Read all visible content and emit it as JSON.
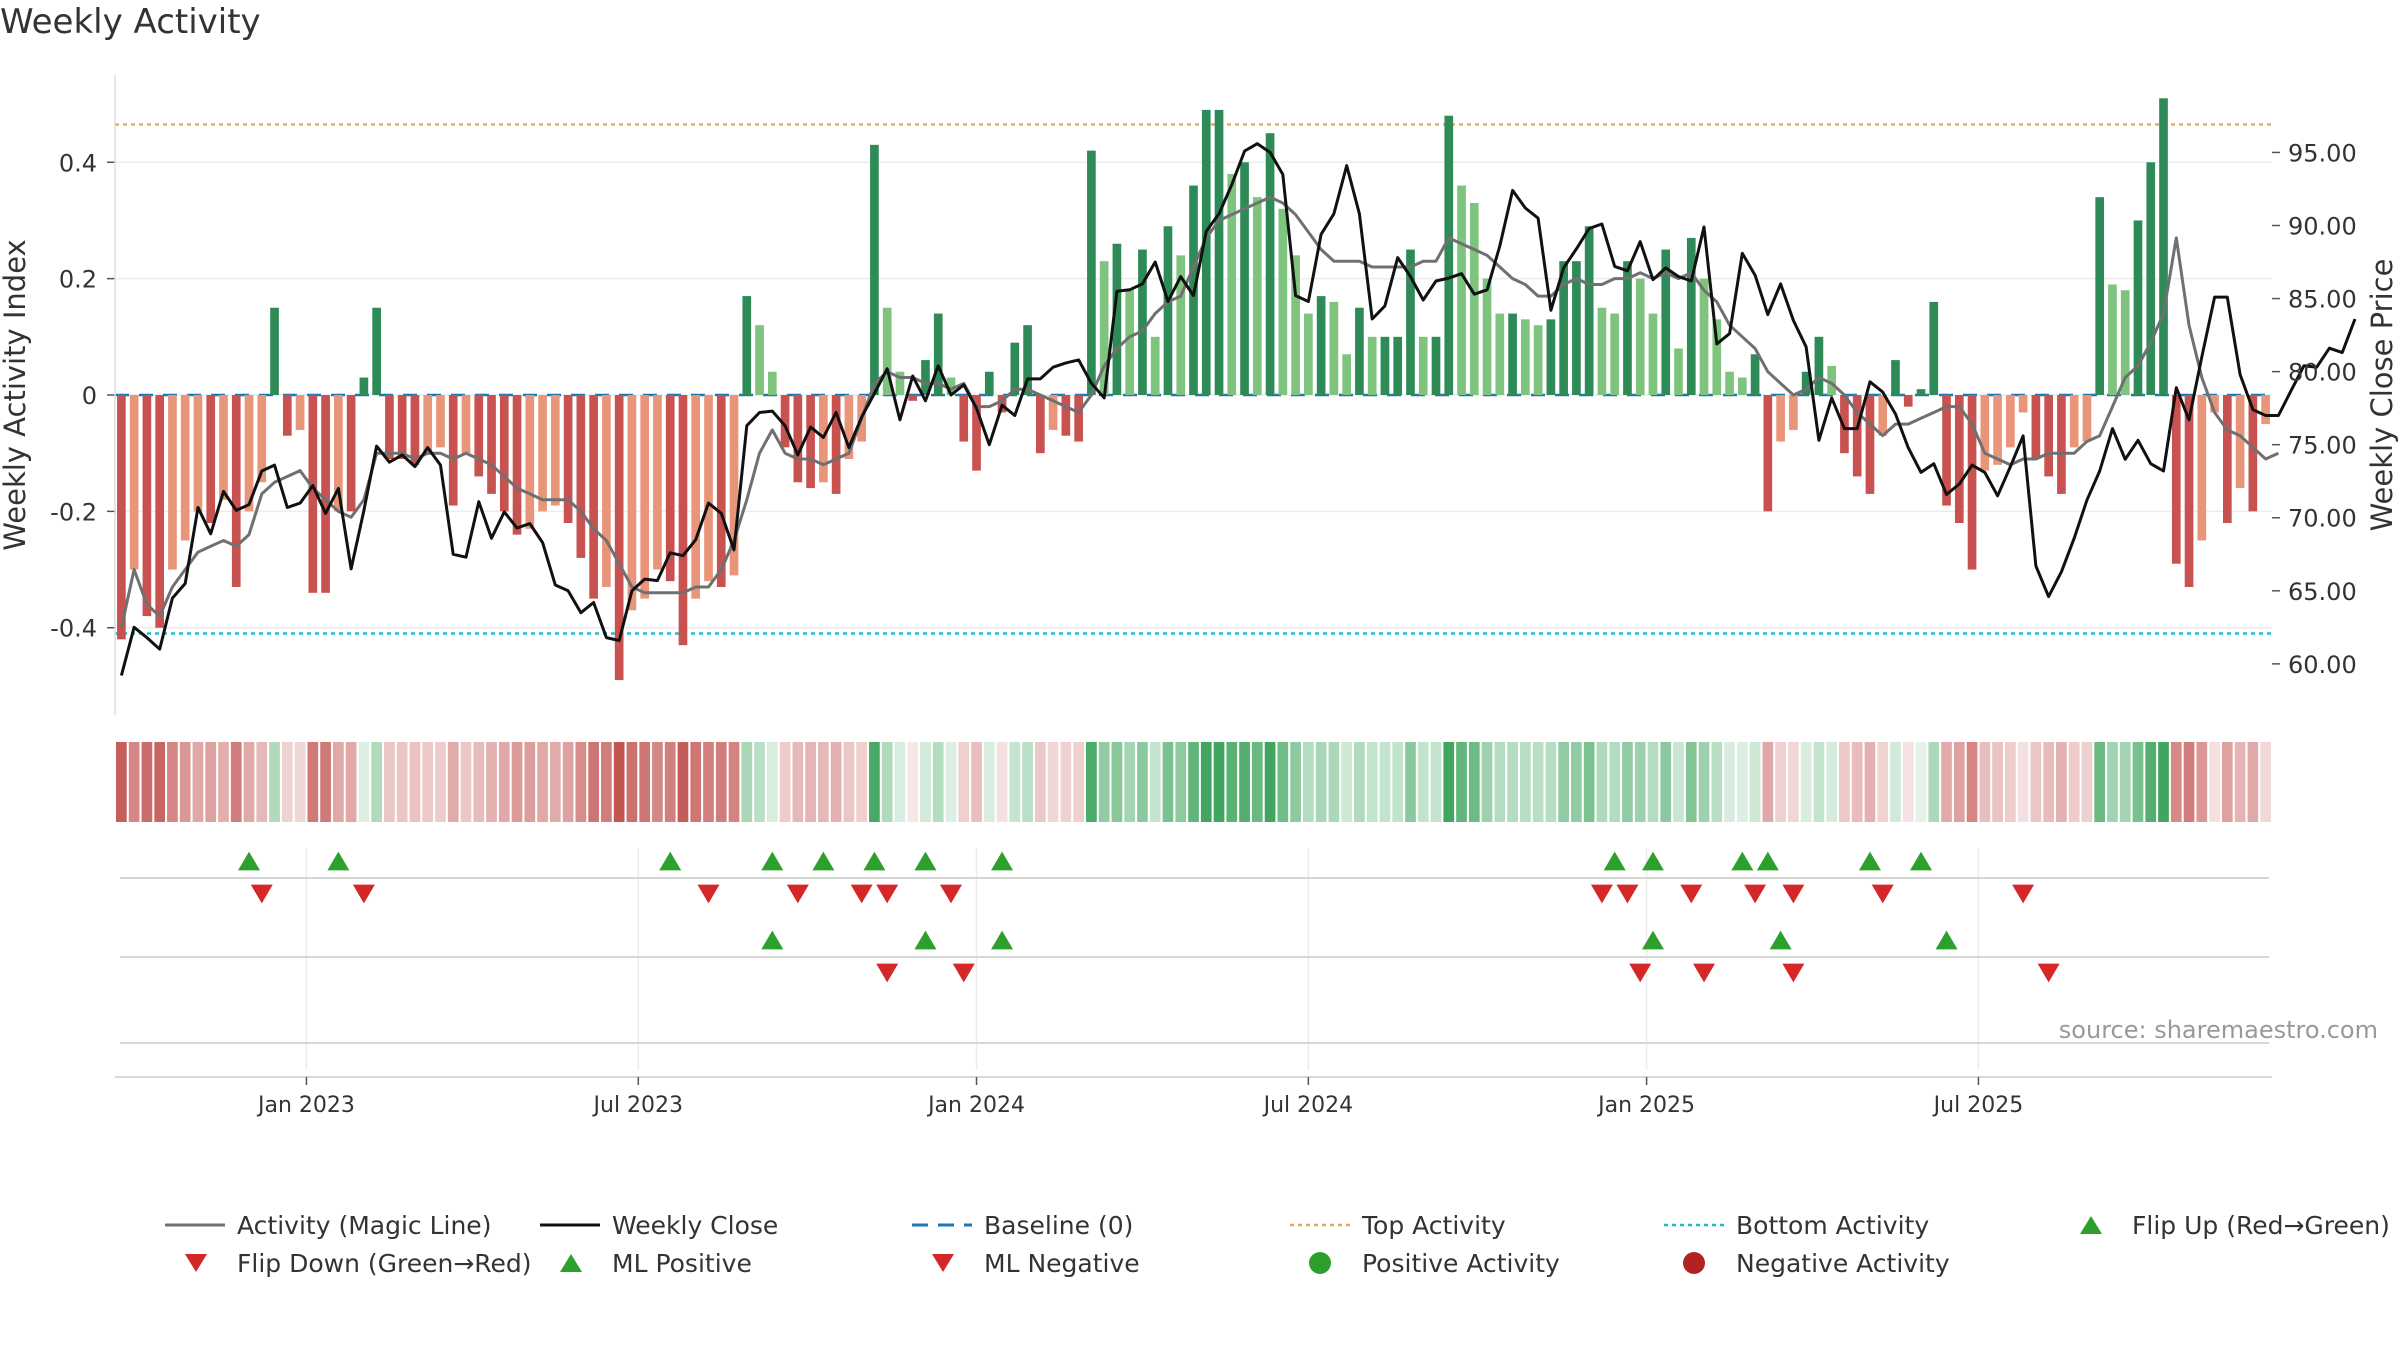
{
  "chart_data": {
    "type": "bar",
    "title": "Weekly Activity",
    "ylabel_left": "Weekly Activity Index",
    "ylabel_right": "Weekly Close Price",
    "ylim_left": [
      -0.55,
      0.55
    ],
    "ylim_right": [
      56.5,
      100.3
    ],
    "left_ticks": [
      {
        "v": 0.4,
        "label": "0.4"
      },
      {
        "v": 0.2,
        "label": "0.2"
      },
      {
        "v": 0,
        "label": "0"
      },
      {
        "v": -0.2,
        "label": "-0.2"
      },
      {
        "v": -0.4,
        "label": "-0.4"
      }
    ],
    "right_ticks": [
      {
        "v": 95,
        "label": "95.00"
      },
      {
        "v": 90,
        "label": "90.00"
      },
      {
        "v": 85,
        "label": "85.00"
      },
      {
        "v": 80,
        "label": "80.00"
      },
      {
        "v": 75,
        "label": "75.00"
      },
      {
        "v": 70,
        "label": "70.00"
      },
      {
        "v": 65,
        "label": "65.00"
      },
      {
        "v": 60,
        "label": "60.00"
      }
    ],
    "x_ticks": [
      {
        "i": 14.5,
        "label": "Jan 2023"
      },
      {
        "i": 40.5,
        "label": "Jul 2023"
      },
      {
        "i": 67,
        "label": "Jan 2024"
      },
      {
        "i": 93,
        "label": "Jul 2024"
      },
      {
        "i": 119.5,
        "label": "Jan 2025"
      },
      {
        "i": 145.5,
        "label": "Jul 2025"
      }
    ],
    "top_activity": 0.465,
    "bottom_activity": -0.41,
    "source": "source: sharemaestro.com",
    "activity": [
      -0.42,
      -0.3,
      -0.38,
      -0.4,
      -0.3,
      -0.25,
      -0.2,
      -0.22,
      -0.18,
      -0.33,
      -0.2,
      -0.15,
      0.15,
      -0.07,
      -0.06,
      -0.34,
      -0.34,
      -0.2,
      -0.2,
      0.03,
      0.15,
      -0.11,
      -0.11,
      -0.12,
      -0.1,
      -0.09,
      -0.19,
      -0.1,
      -0.14,
      -0.17,
      -0.2,
      -0.24,
      -0.23,
      -0.2,
      -0.19,
      -0.22,
      -0.28,
      -0.35,
      -0.33,
      -0.49,
      -0.37,
      -0.35,
      -0.3,
      -0.32,
      -0.43,
      -0.35,
      -0.32,
      -0.33,
      -0.31,
      0.17,
      0.12,
      0.04,
      -0.09,
      -0.15,
      -0.16,
      -0.15,
      -0.17,
      -0.11,
      -0.08,
      0.43,
      0.15,
      0.04,
      -0.01,
      0.06,
      0.14,
      0.03,
      -0.08,
      -0.13,
      0.04,
      -0.03,
      0.09,
      0.12,
      -0.1,
      -0.06,
      -0.07,
      -0.08,
      0.42,
      0.23,
      0.26,
      0.18,
      0.25,
      0.1,
      0.29,
      0.24,
      0.36,
      0.49,
      0.49,
      0.38,
      0.4,
      0.34,
      0.45,
      0.32,
      0.24,
      0.14,
      0.17,
      0.16,
      0.07,
      0.15,
      0.1,
      0.1,
      0.1,
      0.25,
      0.1,
      0.1,
      0.48,
      0.36,
      0.33,
      0.2,
      0.14,
      0.14,
      0.13,
      0.12,
      0.13,
      0.23,
      0.23,
      0.29,
      0.15,
      0.14,
      0.23,
      0.2,
      0.14,
      0.25,
      0.08,
      0.27,
      0.2,
      0.13,
      0.04,
      0.03,
      0.07,
      -0.2,
      -0.08,
      -0.06,
      0.04,
      0.1,
      0.05,
      -0.1,
      -0.14,
      -0.17,
      -0.07,
      0.06,
      -0.02,
      0.01,
      0.16,
      -0.19,
      -0.22,
      -0.3,
      -0.13,
      -0.12,
      -0.09,
      -0.03,
      -0.11,
      -0.14,
      -0.17,
      -0.09,
      -0.08,
      0.34,
      0.19,
      0.18,
      0.3,
      0.4,
      0.51,
      -0.29,
      -0.33,
      -0.25,
      -0.03,
      -0.22,
      -0.16,
      -0.2,
      -0.05
    ],
    "weekly_close": [
      59.2,
      62.5,
      61.8,
      61,
      64.5,
      65.5,
      70.7,
      68.9,
      71.8,
      70.5,
      70.9,
      73.2,
      73.6,
      70.7,
      71,
      72.2,
      70.3,
      72,
      66.5,
      70.5,
      74.9,
      73.8,
      74.3,
      73.5,
      74.8,
      73.6,
      67.5,
      67.3,
      71.1,
      68.6,
      70.4,
      69.3,
      69.6,
      68.3,
      65.4,
      65,
      63.5,
      64.2,
      61.8,
      61.6,
      65,
      65.8,
      65.7,
      67.6,
      67.4,
      68.5,
      71,
      70.3,
      67.8,
      76.3,
      77.2,
      77.3,
      76.3,
      74.3,
      76.2,
      75.5,
      77.2,
      74.8,
      76.9,
      78.5,
      80.2,
      76.7,
      79.7,
      78,
      80.4,
      78.4,
      79.1,
      77.5,
      75,
      77.7,
      77,
      79.5,
      79.5,
      80.3,
      80.6,
      80.8,
      79.2,
      78.2,
      85.5,
      85.6,
      86,
      87.5,
      84.8,
      86.5,
      85.2,
      89.6,
      90.8,
      92.8,
      95.1,
      95.6,
      95,
      93.5,
      85.2,
      84.8,
      89.4,
      90.8,
      94.1,
      90.8,
      83.6,
      84.5,
      87.8,
      86.5,
      84.9,
      86.2,
      86.4,
      86.7,
      85.3,
      85.6,
      88.6,
      92.4,
      91.2,
      90.5,
      84.2,
      87.1,
      88.4,
      89.8,
      90.1,
      87.2,
      86.9,
      88.9,
      86.3,
      87.1,
      86.5,
      86.2,
      89.9,
      81.9,
      82.6,
      88.1,
      86.6,
      83.9,
      86,
      83.5,
      81.7,
      75.3,
      78.2,
      76.1,
      76.1,
      79.3,
      78.6,
      77.1,
      74.8,
      73.1,
      73.7,
      71.6,
      72.3,
      73.6,
      73.1,
      71.5,
      73.5,
      75.6,
      66.7,
      64.6,
      66.3,
      68.6,
      71.2,
      73.2,
      76.1,
      74,
      75.3,
      73.7,
      73.2,
      78.9,
      76.7,
      81,
      85.1,
      85.1,
      79.8,
      77.4,
      77,
      77,
      78.7,
      80.4,
      80.3,
      81.6,
      81.3,
      83.6
    ],
    "magic_line": [
      -0.4,
      -0.3,
      -0.36,
      -0.38,
      -0.33,
      -0.3,
      -0.27,
      -0.26,
      -0.25,
      -0.26,
      -0.24,
      -0.17,
      -0.15,
      -0.14,
      -0.13,
      -0.16,
      -0.18,
      -0.2,
      -0.21,
      -0.18,
      -0.1,
      -0.1,
      -0.1,
      -0.11,
      -0.1,
      -0.1,
      -0.11,
      -0.1,
      -0.11,
      -0.12,
      -0.14,
      -0.16,
      -0.17,
      -0.18,
      -0.18,
      -0.18,
      -0.2,
      -0.23,
      -0.25,
      -0.29,
      -0.33,
      -0.34,
      -0.34,
      -0.34,
      -0.34,
      -0.33,
      -0.33,
      -0.3,
      -0.25,
      -0.18,
      -0.1,
      -0.06,
      -0.1,
      -0.11,
      -0.11,
      -0.12,
      -0.11,
      -0.1,
      -0.04,
      0.02,
      0.04,
      0.03,
      0.03,
      0.02,
      0.02,
      0.01,
      0.02,
      -0.02,
      -0.02,
      -0.01,
      0.01,
      0.01,
      0.0,
      -0.01,
      -0.02,
      -0.03,
      0.0,
      0.05,
      0.08,
      0.1,
      0.11,
      0.14,
      0.16,
      0.17,
      0.22,
      0.27,
      0.3,
      0.31,
      0.32,
      0.33,
      0.34,
      0.33,
      0.31,
      0.28,
      0.25,
      0.23,
      0.23,
      0.23,
      0.22,
      0.22,
      0.22,
      0.22,
      0.23,
      0.23,
      0.27,
      0.26,
      0.25,
      0.24,
      0.22,
      0.2,
      0.19,
      0.17,
      0.17,
      0.19,
      0.2,
      0.19,
      0.19,
      0.2,
      0.2,
      0.21,
      0.2,
      0.21,
      0.2,
      0.21,
      0.18,
      0.16,
      0.12,
      0.1,
      0.08,
      0.04,
      0.02,
      0.0,
      0.01,
      0.03,
      0.02,
      0.0,
      -0.03,
      -0.05,
      -0.07,
      -0.05,
      -0.05,
      -0.04,
      -0.03,
      -0.02,
      -0.02,
      -0.05,
      -0.1,
      -0.11,
      -0.12,
      -0.11,
      -0.11,
      -0.1,
      -0.1,
      -0.1,
      -0.08,
      -0.07,
      -0.02,
      0.03,
      0.05,
      0.09,
      0.14,
      0.27,
      0.12,
      0.03,
      -0.03,
      -0.06,
      -0.07,
      -0.09,
      -0.11,
      -0.1
    ],
    "flip_up": [
      10,
      17,
      43,
      51,
      55,
      59,
      63,
      69,
      117,
      120,
      127,
      129,
      137,
      141
    ],
    "flip_down": [
      11,
      19,
      46,
      53,
      58,
      60,
      65,
      116,
      118,
      123,
      128,
      131,
      138,
      149
    ],
    "ml_positive": [
      51,
      63,
      69,
      120,
      130,
      143
    ],
    "ml_negative": [
      60,
      66,
      119,
      124,
      131,
      151
    ],
    "legend": [
      {
        "key": "magic",
        "label": "Activity (Magic Line)"
      },
      {
        "key": "close",
        "label": "Weekly Close"
      },
      {
        "key": "baseline",
        "label": "Baseline (0)"
      },
      {
        "key": "top",
        "label": "Top Activity"
      },
      {
        "key": "bottom",
        "label": "Bottom Activity"
      },
      {
        "key": "flipup",
        "label": "Flip Up (Red→Green)"
      },
      {
        "key": "flipdown",
        "label": "Flip Down (Green→Red)"
      },
      {
        "key": "mlpos",
        "label": "ML Positive"
      },
      {
        "key": "mlneg",
        "label": "ML Negative"
      },
      {
        "key": "posact",
        "label": "Positive Activity"
      },
      {
        "key": "negact",
        "label": "Negative Activity"
      }
    ],
    "colors": {
      "green_strong": "#2e8b57",
      "green_light": "#7ec47e",
      "red_strong": "#c85250",
      "red_light": "#e8957a",
      "magic": "#707070",
      "close": "#111111",
      "baseline": "#1f77b4",
      "top": "#e8a860",
      "bottom": "#17becf",
      "marker_up": "#2ca02c",
      "marker_down": "#d62728",
      "pos_dot": "#2ca02c",
      "neg_dot": "#b22222"
    }
  }
}
